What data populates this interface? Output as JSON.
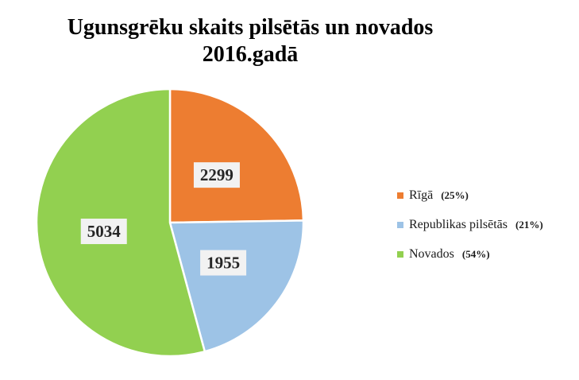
{
  "chart_data": {
    "type": "pie",
    "title_line1": "Ugunsgrēku skaits pilsētās un novados",
    "title_line2": "2016.gadā",
    "categories": [
      "Rīgā",
      "Republikas pilsētās",
      "Novados"
    ],
    "values": [
      2299,
      1955,
      5034
    ],
    "value_labels": [
      "2299",
      "1955",
      "5034"
    ],
    "percent_labels": [
      "(25%)",
      "(21%)",
      "(54%)"
    ],
    "colors": [
      "#ED7D31",
      "#9DC3E6",
      "#92D050"
    ],
    "legend_position": "right"
  }
}
